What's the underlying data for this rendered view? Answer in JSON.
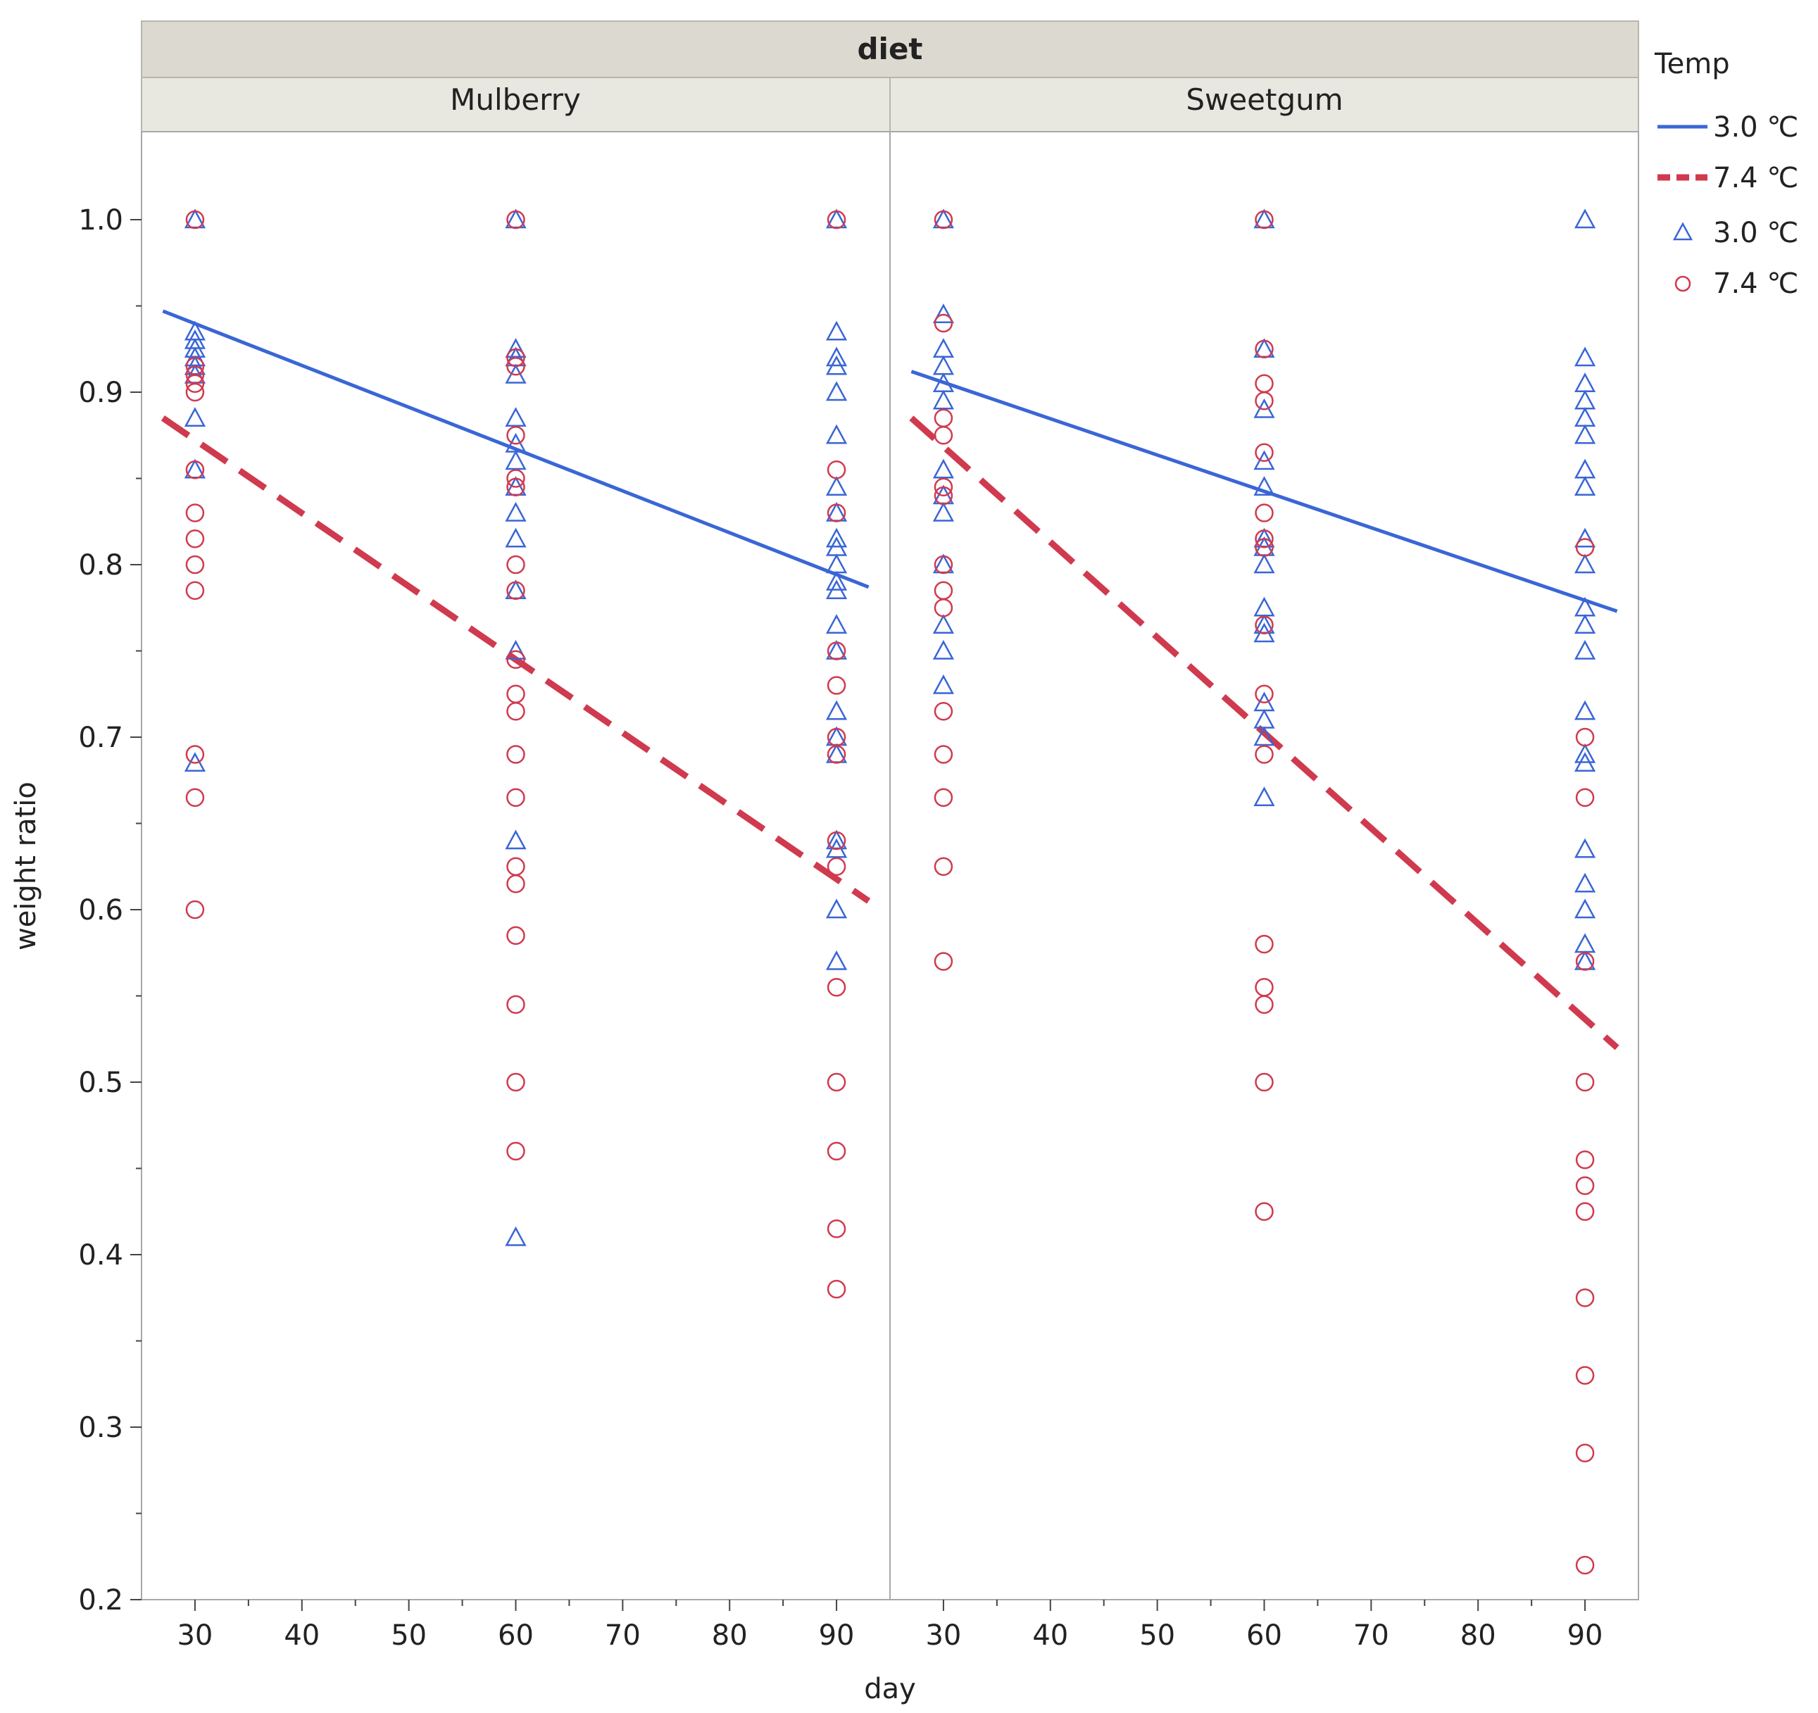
{
  "chart_data": {
    "type": "scatter",
    "facet_header": "diet",
    "panels": [
      "Mulberry",
      "Sweetgum"
    ],
    "xlabel": "day",
    "ylabel": "weight ratio",
    "xlim": [
      25,
      95
    ],
    "ylim": [
      0.2,
      1.05
    ],
    "x_ticks": [
      "30",
      "40",
      "50",
      "60",
      "70",
      "80",
      "90"
    ],
    "y_ticks": [
      "0.2",
      "0.3",
      "0.4",
      "0.5",
      "0.6",
      "0.7",
      "0.8",
      "0.9",
      "1.0"
    ],
    "legend": {
      "title": "Temp",
      "position": "right",
      "entries": [
        {
          "label": "3.0 ℃",
          "kind": "line-solid",
          "color": "#3a66d6"
        },
        {
          "label": "7.4 ℃",
          "kind": "line-dashed",
          "color": "#d03a4e"
        },
        {
          "label": "3.0 ℃",
          "kind": "triangle",
          "color": "#3a66d6"
        },
        {
          "label": "7.4 ℃",
          "kind": "circle",
          "color": "#d03a4e"
        }
      ]
    },
    "colors": {
      "temp_3_0": "#3a66d6",
      "temp_7_4": "#d03a4e"
    },
    "series": [
      {
        "panel": "Mulberry",
        "name": "3.0 ℃",
        "marker": "triangle",
        "points": [
          {
            "day": 30,
            "values": [
              1.0,
              0.935,
              0.93,
              0.925,
              0.92,
              0.915,
              0.91,
              0.885,
              0.855,
              0.685
            ]
          },
          {
            "day": 60,
            "values": [
              1.0,
              0.925,
              0.92,
              0.91,
              0.885,
              0.87,
              0.86,
              0.845,
              0.83,
              0.815,
              0.785,
              0.75,
              0.64,
              0.41
            ]
          },
          {
            "day": 90,
            "values": [
              1.0,
              0.935,
              0.92,
              0.915,
              0.9,
              0.875,
              0.845,
              0.83,
              0.815,
              0.81,
              0.8,
              0.79,
              0.785,
              0.765,
              0.75,
              0.715,
              0.7,
              0.69,
              0.64,
              0.635,
              0.6,
              0.57
            ]
          }
        ],
        "fit": {
          "type": "line",
          "style": "solid",
          "x": [
            27,
            93
          ],
          "y": [
            0.947,
            0.787
          ]
        }
      },
      {
        "panel": "Mulberry",
        "name": "7.4 ℃",
        "marker": "circle",
        "points": [
          {
            "day": 30,
            "values": [
              1.0,
              0.915,
              0.91,
              0.905,
              0.9,
              0.855,
              0.83,
              0.815,
              0.8,
              0.785,
              0.69,
              0.665,
              0.6
            ]
          },
          {
            "day": 60,
            "values": [
              1.0,
              0.92,
              0.915,
              0.875,
              0.85,
              0.845,
              0.8,
              0.785,
              0.745,
              0.725,
              0.715,
              0.69,
              0.665,
              0.625,
              0.615,
              0.585,
              0.545,
              0.5,
              0.46
            ]
          },
          {
            "day": 90,
            "values": [
              1.0,
              0.855,
              0.83,
              0.75,
              0.73,
              0.7,
              0.69,
              0.64,
              0.625,
              0.555,
              0.5,
              0.46,
              0.415,
              0.38
            ]
          }
        ],
        "fit": {
          "type": "line",
          "style": "dashed",
          "x": [
            27,
            93
          ],
          "y": [
            0.885,
            0.605
          ]
        }
      },
      {
        "panel": "Sweetgum",
        "name": "3.0 ℃",
        "marker": "triangle",
        "points": [
          {
            "day": 30,
            "values": [
              1.0,
              0.945,
              0.925,
              0.915,
              0.905,
              0.895,
              0.855,
              0.84,
              0.83,
              0.8,
              0.765,
              0.75,
              0.73
            ]
          },
          {
            "day": 60,
            "values": [
              1.0,
              0.925,
              0.89,
              0.86,
              0.845,
              0.815,
              0.81,
              0.8,
              0.775,
              0.765,
              0.76,
              0.72,
              0.71,
              0.7,
              0.665
            ]
          },
          {
            "day": 90,
            "values": [
              1.0,
              0.92,
              0.905,
              0.895,
              0.885,
              0.875,
              0.855,
              0.845,
              0.815,
              0.8,
              0.775,
              0.765,
              0.75,
              0.715,
              0.69,
              0.685,
              0.635,
              0.615,
              0.6,
              0.58,
              0.57
            ]
          }
        ],
        "fit": {
          "type": "line",
          "style": "solid",
          "x": [
            27,
            93
          ],
          "y": [
            0.912,
            0.773
          ]
        }
      },
      {
        "panel": "Sweetgum",
        "name": "7.4 ℃",
        "marker": "circle",
        "points": [
          {
            "day": 30,
            "values": [
              1.0,
              0.94,
              0.885,
              0.875,
              0.845,
              0.84,
              0.8,
              0.785,
              0.775,
              0.715,
              0.69,
              0.665,
              0.625,
              0.57
            ]
          },
          {
            "day": 60,
            "values": [
              1.0,
              0.925,
              0.905,
              0.895,
              0.865,
              0.83,
              0.815,
              0.81,
              0.765,
              0.725,
              0.69,
              0.58,
              0.555,
              0.545,
              0.5,
              0.425
            ]
          },
          {
            "day": 90,
            "values": [
              0.81,
              0.7,
              0.665,
              0.57,
              0.5,
              0.455,
              0.44,
              0.425,
              0.375,
              0.33,
              0.285,
              0.22
            ]
          }
        ],
        "fit": {
          "type": "line",
          "style": "dashed",
          "x": [
            27,
            93
          ],
          "y": [
            0.885,
            0.52
          ]
        }
      }
    ]
  }
}
